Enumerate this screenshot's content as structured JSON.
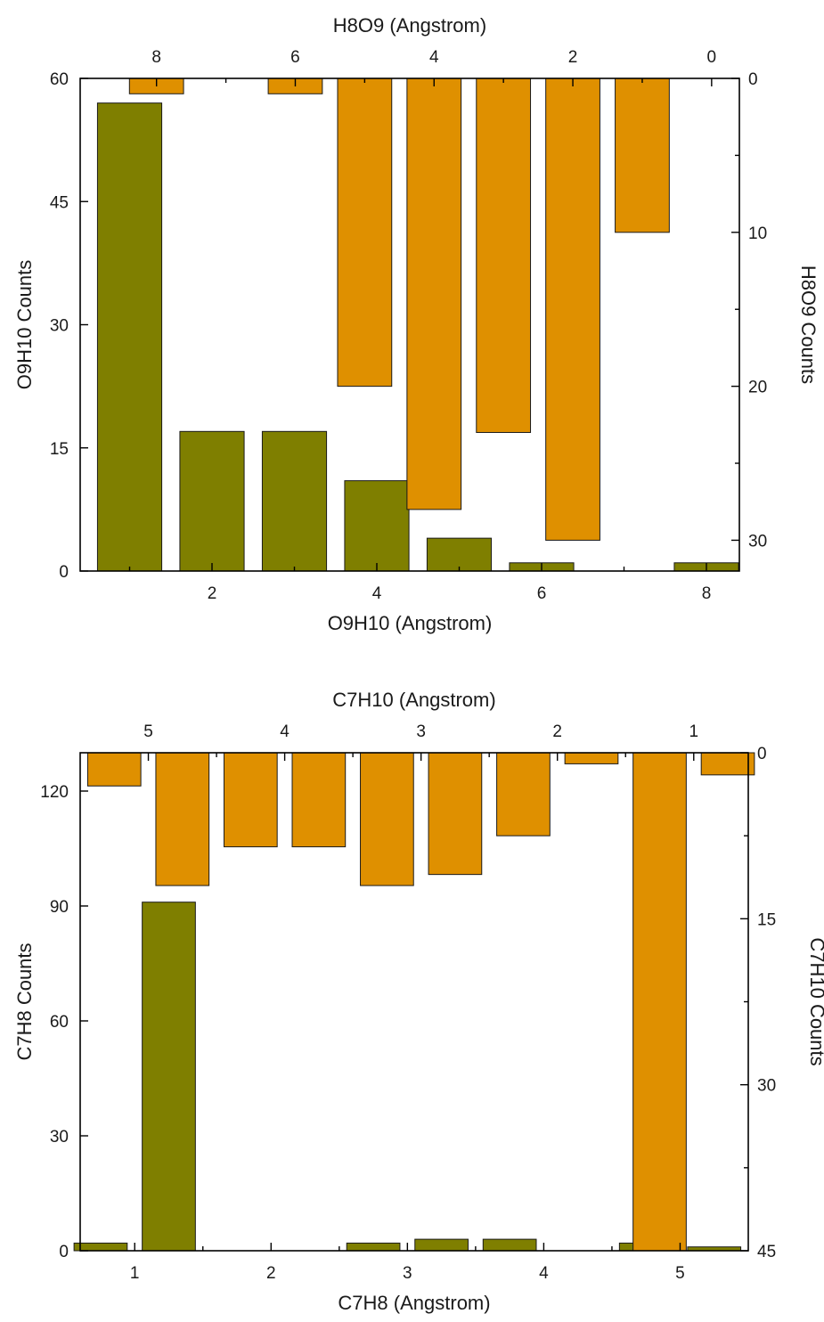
{
  "colors": {
    "bottom_series": "#7f7f00",
    "top_series": "#df9000",
    "bar_outline": "#1a1a1a"
  },
  "chart_data": [
    {
      "type": "bar",
      "title": "",
      "x_bottom": {
        "label": "O9H10 (Angstrom)",
        "range": [
          0.4,
          8.4
        ],
        "ticks": [
          2,
          4,
          6,
          8
        ],
        "minor_ticks": [
          1,
          3,
          5,
          7
        ]
      },
      "y_left": {
        "label": "O9H10 Counts",
        "range": [
          0,
          60
        ],
        "ticks": [
          0,
          15,
          30,
          45,
          60
        ]
      },
      "x_top": {
        "label": "H8O9 (Angstrom)",
        "range": [
          9.1,
          -0.4
        ],
        "ticks": [
          8,
          6,
          4,
          2,
          0
        ],
        "minor_ticks": [
          7,
          5,
          3,
          1
        ]
      },
      "y_right": {
        "label": "H8O9 Counts",
        "range": [
          0,
          32
        ],
        "inverted": true,
        "ticks": [
          0,
          10,
          20,
          30
        ],
        "minor_ticks": [
          5,
          15,
          25
        ]
      },
      "series": [
        {
          "axis": "bottom-left",
          "color": "#7f7f00",
          "bar_width": 0.78,
          "x": [
            1,
            2,
            3,
            4,
            5,
            6,
            7,
            8
          ],
          "values": [
            57,
            17,
            17,
            11,
            4,
            1,
            0,
            1
          ]
        },
        {
          "axis": "top-right",
          "color": "#df9000",
          "bar_width": 0.78,
          "x": [
            8,
            7,
            6,
            5,
            4,
            3,
            2,
            1
          ],
          "values": [
            1,
            0,
            1,
            20,
            28,
            23,
            30,
            10
          ]
        }
      ]
    },
    {
      "type": "bar",
      "title": "",
      "x_bottom": {
        "label": "C7H8 (Angstrom)",
        "range": [
          0.6,
          5.5
        ],
        "ticks": [
          1,
          2,
          3,
          4,
          5
        ],
        "minor_ticks": [
          1.5,
          2.5,
          3.5,
          4.5
        ]
      },
      "y_left": {
        "label": "C7H8 Counts",
        "range": [
          0,
          130
        ],
        "ticks": [
          0,
          30,
          60,
          90,
          120
        ]
      },
      "x_top": {
        "label": "C7H10 (Angstrom)",
        "range": [
          5.5,
          0.6
        ],
        "ticks": [
          5,
          4,
          3,
          2,
          1
        ],
        "minor_ticks": [
          4.5,
          3.5,
          2.5,
          1.5
        ]
      },
      "y_right": {
        "label": "C7H10 Counts",
        "range": [
          0,
          45
        ],
        "inverted": true,
        "ticks": [
          0,
          15,
          30,
          45
        ],
        "minor_ticks": [
          7.5,
          22.5,
          37.5
        ]
      },
      "series": [
        {
          "axis": "bottom-left",
          "color": "#7f7f00",
          "bar_width": 0.39,
          "x": [
            0.75,
            1.25,
            1.75,
            2.25,
            2.75,
            3.25,
            3.75,
            4.25,
            4.75,
            5.25
          ],
          "values": [
            2,
            91,
            0,
            0,
            2,
            3,
            3,
            0,
            2,
            1
          ]
        },
        {
          "axis": "top-right",
          "color": "#df9000",
          "bar_width": 0.39,
          "x": [
            5.25,
            4.75,
            4.25,
            3.75,
            3.25,
            2.75,
            2.25,
            1.75,
            1.25,
            0.75
          ],
          "values": [
            3,
            12,
            8.5,
            8.5,
            12,
            11,
            7.5,
            1,
            45,
            2
          ]
        }
      ]
    }
  ]
}
